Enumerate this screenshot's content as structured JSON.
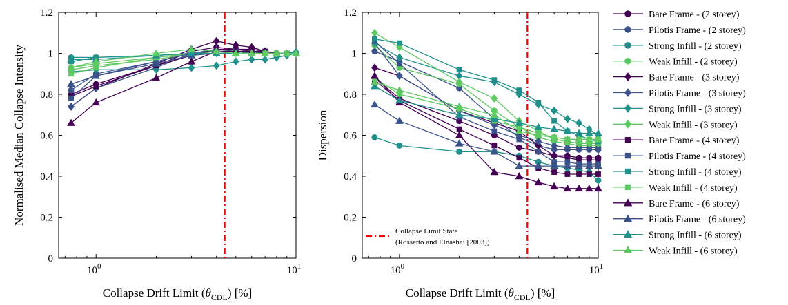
{
  "chart_data": [
    {
      "type": "line",
      "xscale": "log",
      "xlim": [
        0.65,
        10
      ],
      "ylim": [
        0,
        1.2
      ],
      "xlabel_main": "Collapse Drift Limit (",
      "xlabel_theta": "θ",
      "xlabel_sub": "CDL",
      "xlabel_end": ") [%]",
      "ylabel": "Normalised Median Collapse Intensity",
      "yticks": [
        "0",
        "0.2",
        "0.4",
        "0.6",
        "0.8",
        "1",
        "1.2"
      ],
      "xtick_base": "10",
      "xtick_exps": [
        "0",
        "1"
      ],
      "limit_line_x": 4.4,
      "x": [
        0.75,
        1,
        2,
        3,
        4,
        5,
        6,
        7,
        8,
        9,
        10
      ],
      "series": [
        {
          "name": "Bare Frame - (2 storey)",
          "color": "#440154",
          "marker": "circle",
          "values": [
            0.8,
            0.85,
            0.94,
            1.01,
            1.03,
            1.02,
            1.02,
            1.01,
            1.0,
            1.0,
            1.0
          ]
        },
        {
          "name": "Pilotis Frame - (2 storey)",
          "color": "#3b528b",
          "marker": "circle",
          "values": [
            0.82,
            0.9,
            0.96,
            1.0,
            1.01,
            1.01,
            1.01,
            1.0,
            1.0,
            1.0,
            1.0
          ]
        },
        {
          "name": "Strong Infill - (2 storey)",
          "color": "#21918c",
          "marker": "circle",
          "values": [
            0.98,
            0.98,
            0.99,
            1.0,
            1.0,
            1.0,
            1.0,
            1.0,
            1.0,
            1.0,
            1.0
          ]
        },
        {
          "name": "Weak Infill - (2 storey)",
          "color": "#5ec962",
          "marker": "circle",
          "values": [
            0.93,
            0.95,
            0.98,
            1.0,
            1.0,
            1.0,
            1.0,
            1.0,
            1.0,
            1.0,
            1.0
          ]
        },
        {
          "name": "Bare Frame - (3 storey)",
          "color": "#440154",
          "marker": "diamond",
          "values": [
            0.74,
            0.83,
            0.95,
            1.02,
            1.06,
            1.04,
            1.03,
            1.01,
            1.0,
            1.0,
            1.0
          ]
        },
        {
          "name": "Pilotis Frame - (3 storey)",
          "color": "#3b528b",
          "marker": "diamond",
          "values": [
            0.74,
            0.83,
            0.93,
            1.0,
            1.02,
            1.01,
            1.01,
            1.0,
            1.0,
            1.0,
            1.0
          ]
        },
        {
          "name": "Strong Infill - (3 storey)",
          "color": "#21918c",
          "marker": "diamond",
          "values": [
            0.91,
            0.92,
            0.92,
            0.93,
            0.94,
            0.96,
            0.97,
            0.97,
            0.98,
            0.99,
            1.0
          ]
        },
        {
          "name": "Weak Infill - (3 storey)",
          "color": "#5ec962",
          "marker": "diamond",
          "values": [
            0.92,
            0.94,
            0.97,
            1.0,
            1.0,
            1.0,
            1.0,
            1.0,
            1.0,
            1.0,
            1.0
          ]
        },
        {
          "name": "Bare Frame - (4 storey)",
          "color": "#440154",
          "marker": "square",
          "values": [
            0.79,
            0.84,
            0.94,
            0.99,
            1.02,
            1.02,
            1.01,
            1.01,
            1.0,
            1.0,
            1.0
          ]
        },
        {
          "name": "Pilotis Frame - (4 storey)",
          "color": "#3b528b",
          "marker": "square",
          "values": [
            0.78,
            0.89,
            0.96,
            1.0,
            1.01,
            1.01,
            1.0,
            1.0,
            1.0,
            1.0,
            1.0
          ]
        },
        {
          "name": "Strong Infill - (4 storey)",
          "color": "#21918c",
          "marker": "square",
          "values": [
            0.96,
            0.98,
            0.99,
            1.0,
            1.0,
            1.0,
            1.0,
            1.0,
            1.0,
            1.0,
            1.0
          ]
        },
        {
          "name": "Weak Infill - (4 storey)",
          "color": "#5ec962",
          "marker": "square",
          "values": [
            0.9,
            0.93,
            0.98,
            1.0,
            1.0,
            1.0,
            1.0,
            1.0,
            1.0,
            1.0,
            1.0
          ]
        },
        {
          "name": "Bare Frame - (6 storey)",
          "color": "#440154",
          "marker": "triangle",
          "values": [
            0.66,
            0.76,
            0.88,
            0.96,
            1.01,
            1.01,
            1.01,
            1.0,
            1.0,
            1.0,
            1.0
          ]
        },
        {
          "name": "Pilotis Frame - (6 storey)",
          "color": "#3b528b",
          "marker": "triangle",
          "values": [
            0.85,
            0.89,
            0.95,
            0.99,
            1.0,
            1.0,
            1.0,
            1.0,
            1.0,
            1.0,
            1.0
          ]
        },
        {
          "name": "Strong Infill - (6 storey)",
          "color": "#21918c",
          "marker": "triangle",
          "values": [
            0.97,
            0.97,
            0.99,
            1.0,
            1.0,
            1.0,
            1.0,
            1.0,
            1.0,
            1.0,
            1.01
          ]
        },
        {
          "name": "Weak Infill - (6 storey)",
          "color": "#5ec962",
          "marker": "triangle",
          "values": [
            0.93,
            0.96,
            1.0,
            1.02,
            1.01,
            1.0,
            1.0,
            1.0,
            1.0,
            1.0,
            1.0
          ]
        }
      ]
    },
    {
      "type": "line",
      "xscale": "log",
      "xlim": [
        0.65,
        10
      ],
      "ylim": [
        0,
        1.2
      ],
      "xlabel_main": "Collapse Drift Limit (",
      "xlabel_theta": "θ",
      "xlabel_sub": "CDL",
      "xlabel_end": ") [%]",
      "ylabel": "Dispersion",
      "yticks": [
        "0",
        "0.2",
        "0.4",
        "0.6",
        "0.8",
        "1",
        "1.2"
      ],
      "xtick_base": "10",
      "xtick_exps": [
        "0",
        "1"
      ],
      "limit_line_x": 4.4,
      "annotation_line1": "Collapse Limit State",
      "annotation_line2": "(Rossetto and Elnashai [2003])",
      "x": [
        0.75,
        1,
        2,
        3,
        4,
        5,
        6,
        7,
        8,
        9,
        10
      ],
      "series": [
        {
          "name": "Bare Frame - (2 storey)",
          "color": "#440154",
          "marker": "circle",
          "values": [
            0.88,
            0.78,
            0.67,
            0.6,
            0.54,
            0.52,
            0.5,
            0.5,
            0.49,
            0.49,
            0.49
          ]
        },
        {
          "name": "Pilotis Frame - (2 storey)",
          "color": "#3b528b",
          "marker": "circle",
          "values": [
            1.01,
            0.96,
            0.83,
            0.68,
            0.59,
            0.55,
            0.53,
            0.53,
            0.53,
            0.53,
            0.53
          ]
        },
        {
          "name": "Strong Infill - (2 storey)",
          "color": "#21918c",
          "marker": "circle",
          "values": [
            0.59,
            0.55,
            0.52,
            0.52,
            0.5,
            0.47,
            0.45,
            0.44,
            0.43,
            0.42,
            0.38
          ]
        },
        {
          "name": "Weak Infill - (2 storey)",
          "color": "#5ec962",
          "marker": "circle",
          "values": [
            1.04,
            0.93,
            0.85,
            0.72,
            0.64,
            0.59,
            0.57,
            0.56,
            0.55,
            0.55,
            0.55
          ]
        },
        {
          "name": "Bare Frame - (3 storey)",
          "color": "#440154",
          "marker": "diamond",
          "values": [
            0.93,
            0.89,
            0.72,
            0.66,
            0.62,
            0.55,
            0.5,
            0.49,
            0.48,
            0.48,
            0.48
          ]
        },
        {
          "name": "Pilotis Frame - (3 storey)",
          "color": "#3b528b",
          "marker": "diamond",
          "values": [
            1.05,
            0.89,
            0.72,
            0.65,
            0.6,
            0.57,
            0.55,
            0.54,
            0.54,
            0.54,
            0.54
          ]
        },
        {
          "name": "Strong Infill - (3 storey)",
          "color": "#21918c",
          "marker": "diamond",
          "values": [
            1.05,
            0.98,
            0.89,
            0.86,
            0.8,
            0.75,
            0.72,
            0.68,
            0.66,
            0.63,
            0.6
          ]
        },
        {
          "name": "Weak Infill - (3 storey)",
          "color": "#5ec962",
          "marker": "diamond",
          "values": [
            1.1,
            1.03,
            0.86,
            0.78,
            0.67,
            0.62,
            0.58,
            0.57,
            0.56,
            0.56,
            0.56
          ]
        },
        {
          "name": "Bare Frame - (4 storey)",
          "color": "#440154",
          "marker": "square",
          "values": [
            0.87,
            0.77,
            0.63,
            0.55,
            0.49,
            0.44,
            0.42,
            0.41,
            0.41,
            0.41,
            0.41
          ]
        },
        {
          "name": "Pilotis Frame - (4 storey)",
          "color": "#3b528b",
          "marker": "square",
          "values": [
            1.06,
            0.95,
            0.69,
            0.62,
            0.58,
            0.52,
            0.47,
            0.47,
            0.46,
            0.46,
            0.46
          ]
        },
        {
          "name": "Strong Infill - (4 storey)",
          "color": "#21918c",
          "marker": "square",
          "values": [
            1.07,
            1.05,
            0.92,
            0.87,
            0.82,
            0.76,
            0.67,
            0.62,
            0.6,
            0.58,
            0.57
          ]
        },
        {
          "name": "Weak Infill - (4 storey)",
          "color": "#5ec962",
          "marker": "square",
          "values": [
            0.88,
            0.8,
            0.73,
            0.67,
            0.64,
            0.61,
            0.59,
            0.58,
            0.58,
            0.58,
            0.58
          ]
        },
        {
          "name": "Bare Frame - (6 storey)",
          "color": "#440154",
          "marker": "triangle",
          "values": [
            0.89,
            0.76,
            0.6,
            0.42,
            0.4,
            0.37,
            0.35,
            0.34,
            0.34,
            0.34,
            0.34
          ]
        },
        {
          "name": "Pilotis Frame - (6 storey)",
          "color": "#3b528b",
          "marker": "triangle",
          "values": [
            0.75,
            0.67,
            0.56,
            0.52,
            0.45,
            0.45,
            0.45,
            0.45,
            0.45,
            0.45,
            0.45
          ]
        },
        {
          "name": "Strong Infill - (6 storey)",
          "color": "#21918c",
          "marker": "triangle",
          "values": [
            0.84,
            0.77,
            0.7,
            0.68,
            0.66,
            0.64,
            0.63,
            0.62,
            0.61,
            0.61,
            0.61
          ]
        },
        {
          "name": "Weak Infill - (6 storey)",
          "color": "#5ec962",
          "marker": "triangle",
          "values": [
            0.86,
            0.82,
            0.74,
            0.7,
            0.62,
            0.6,
            0.59,
            0.58,
            0.58,
            0.58,
            0.58
          ]
        }
      ]
    }
  ],
  "legend": {
    "entries": [
      {
        "label": "Bare Frame - (2 storey)",
        "color": "#440154",
        "marker": "circle"
      },
      {
        "label": "Pilotis Frame - (2 storey)",
        "color": "#3b528b",
        "marker": "circle"
      },
      {
        "label": "Strong Infill - (2 storey)",
        "color": "#21918c",
        "marker": "circle"
      },
      {
        "label": "Weak Infill - (2 storey)",
        "color": "#5ec962",
        "marker": "circle"
      },
      {
        "label": "Bare Frame - (3 storey)",
        "color": "#440154",
        "marker": "diamond"
      },
      {
        "label": "Pilotis Frame - (3 storey)",
        "color": "#3b528b",
        "marker": "diamond"
      },
      {
        "label": "Strong Infill - (3 storey)",
        "color": "#21918c",
        "marker": "diamond"
      },
      {
        "label": "Weak Infill - (3 storey)",
        "color": "#5ec962",
        "marker": "diamond"
      },
      {
        "label": "Bare Frame - (4 storey)",
        "color": "#440154",
        "marker": "square"
      },
      {
        "label": "Pilotis Frame - (4 storey)",
        "color": "#3b528b",
        "marker": "square"
      },
      {
        "label": "Strong Infill - (4 storey)",
        "color": "#21918c",
        "marker": "square"
      },
      {
        "label": "Weak Infill - (4 storey)",
        "color": "#5ec962",
        "marker": "square"
      },
      {
        "label": "Bare Frame - (6 storey)",
        "color": "#440154",
        "marker": "triangle"
      },
      {
        "label": "Pilotis Frame - (6 storey)",
        "color": "#3b528b",
        "marker": "triangle"
      },
      {
        "label": "Strong Infill - (6 storey)",
        "color": "#21918c",
        "marker": "triangle"
      },
      {
        "label": "Weak Infill - (6 storey)",
        "color": "#5ec962",
        "marker": "triangle"
      }
    ]
  },
  "limit_line_color": "#ff0000"
}
